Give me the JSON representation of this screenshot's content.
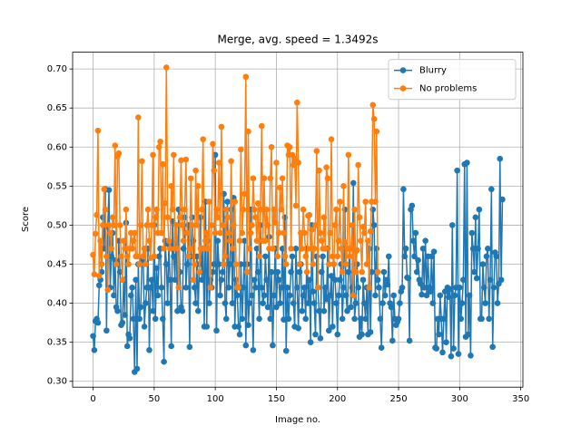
{
  "chart_data": {
    "type": "line",
    "title": "Merge, avg. speed = 1.3492s",
    "x_label": "Image no.",
    "y_label": "Score",
    "xlim": [
      -16.75,
      351.75
    ],
    "xticks": [
      0,
      50,
      100,
      150,
      200,
      250,
      300,
      350
    ],
    "ylim": [
      0.2925,
      0.7215
    ],
    "yticks": [
      {
        "value": 0.3,
        "label": "0.30"
      },
      {
        "value": 0.35,
        "label": "0.35"
      },
      {
        "value": 0.4,
        "label": "0.40"
      },
      {
        "value": 0.45,
        "label": "0.45"
      },
      {
        "value": 0.5,
        "label": "0.50"
      },
      {
        "value": 0.55,
        "label": "0.55"
      },
      {
        "value": 0.6,
        "label": "0.60"
      },
      {
        "value": 0.65,
        "label": "0.65"
      },
      {
        "value": 0.7,
        "label": "0.70"
      }
    ],
    "grid": true,
    "legend": "upper right",
    "series": [
      {
        "name": "Blurry",
        "color": "#1f77b4",
        "values": [
          0.358,
          0.34,
          0.377,
          0.38,
          0.375,
          0.423,
          0.43,
          0.44,
          0.51,
          0.47,
          0.546,
          0.365,
          0.498,
          0.545,
          0.42,
          0.46,
          0.49,
          0.41,
          0.455,
          0.395,
          0.39,
          0.48,
          0.44,
          0.372,
          0.375,
          0.43,
          0.385,
          0.503,
          0.345,
          0.36,
          0.355,
          0.41,
          0.42,
          0.38,
          0.312,
          0.43,
          0.316,
          0.45,
          0.38,
          0.395,
          0.455,
          0.46,
          0.37,
          0.4,
          0.42,
          0.47,
          0.34,
          0.42,
          0.43,
          0.39,
          0.5,
          0.38,
          0.445,
          0.41,
          0.46,
          0.47,
          0.42,
          0.38,
          0.325,
          0.48,
          0.45,
          0.4,
          0.475,
          0.43,
          0.345,
          0.505,
          0.46,
          0.43,
          0.5,
          0.39,
          0.52,
          0.44,
          0.395,
          0.39,
          0.47,
          0.51,
          0.42,
          0.45,
          0.5,
          0.344,
          0.46,
          0.51,
          0.48,
          0.42,
          0.4,
          0.46,
          0.39,
          0.45,
          0.51,
          0.43,
          0.47,
          0.37,
          0.53,
          0.37,
          0.48,
          0.4,
          0.43,
          0.42,
          0.44,
          0.45,
          0.59,
          0.365,
          0.48,
          0.45,
          0.41,
          0.43,
          0.44,
          0.54,
          0.4,
          0.38,
          0.53,
          0.42,
          0.45,
          0.52,
          0.4,
          0.535,
          0.37,
          0.43,
          0.41,
          0.37,
          0.36,
          0.45,
          0.38,
          0.42,
          0.48,
          0.346,
          0.45,
          0.372,
          0.4,
          0.52,
          0.41,
          0.34,
          0.43,
          0.42,
          0.47,
          0.44,
          0.38,
          0.5,
          0.42,
          0.4,
          0.41,
          0.46,
          0.43,
          0.395,
          0.485,
          0.38,
          0.44,
          0.346,
          0.41,
          0.47,
          0.395,
          0.44,
          0.43,
          0.4,
          0.42,
          0.47,
          0.379,
          0.51,
          0.339,
          0.42,
          0.38,
          0.41,
          0.44,
          0.46,
          0.4,
          0.37,
          0.47,
          0.42,
          0.368,
          0.44,
          0.45,
          0.39,
          0.41,
          0.42,
          0.38,
          0.47,
          0.4,
          0.43,
          0.35,
          0.5,
          0.415,
          0.4,
          0.36,
          0.46,
          0.42,
          0.39,
          0.355,
          0.44,
          0.46,
          0.39,
          0.42,
          0.405,
          0.47,
          0.365,
          0.41,
          0.435,
          0.37,
          0.45,
          0.43,
          0.4,
          0.36,
          0.41,
          0.43,
          0.45,
          0.38,
          0.42,
          0.52,
          0.41,
          0.39,
          0.44,
          0.47,
          0.395,
          0.42,
          0.554,
          0.38,
          0.4,
          0.45,
          0.42,
          0.357,
          0.38,
          0.36,
          0.43,
          0.4,
          0.38,
          0.42,
          0.36,
          0.47,
          0.363,
          0.44,
          0.52,
          0.5,
          0.41,
          0.47,
          0.43,
          0.42,
          0.38,
          0.343,
          0.4,
          0.44,
          0.41,
          0.43,
          0.424,
          0.46,
          0.4,
          0.395,
          0.352,
          0.41,
          0.38,
          0.372,
          0.376,
          0.38,
          0.4,
          0.415,
          0.42,
          0.546,
          0.46,
          0.47,
          0.433,
          0.432,
          0.352,
          0.52,
          0.525,
          0.48,
          0.46,
          0.49,
          0.44,
          0.455,
          0.43,
          0.425,
          0.411,
          0.47,
          0.42,
          0.48,
          0.41,
          0.46,
          0.42,
          0.415,
          0.46,
          0.4,
          0.466,
          0.343,
          0.342,
          0.38,
          0.36,
          0.41,
          0.38,
          0.337,
          0.38,
          0.415,
          0.35,
          0.42,
          0.408,
          0.418,
          0.332,
          0.5,
          0.342,
          0.41,
          0.42,
          0.57,
          0.335,
          0.42,
          0.38,
          0.4,
          0.43,
          0.578,
          0.357,
          0.58,
          0.36,
          0.41,
          0.333,
          0.49,
          0.47,
          0.44,
          0.51,
          0.432,
          0.47,
          0.52,
          0.38,
          0.38,
          0.45,
          0.42,
          0.4,
          0.46,
          0.47,
          0.38,
          0.43,
          0.546,
          0.344,
          0.42,
          0.465,
          0.46,
          0.4,
          0.425,
          0.585,
          0.43,
          0.533
        ]
      },
      {
        "name": "No problems",
        "color": "#ff7f0e",
        "values": [
          0.462,
          0.437,
          0.489,
          0.513,
          0.621,
          0.435,
          0.48,
          0.45,
          0.5,
          0.546,
          0.52,
          0.46,
          0.417,
          0.5,
          0.49,
          0.47,
          0.51,
          0.5,
          0.602,
          0.45,
          0.588,
          0.592,
          0.5,
          0.46,
          0.43,
          0.48,
          0.47,
          0.52,
          0.46,
          0.45,
          0.47,
          0.49,
          0.47,
          0.48,
          0.49,
          0.46,
          0.46,
          0.638,
          0.45,
          0.5,
          0.582,
          0.46,
          0.47,
          0.45,
          0.5,
          0.52,
          0.48,
          0.458,
          0.5,
          0.59,
          0.46,
          0.51,
          0.52,
          0.49,
          0.6,
          0.607,
          0.49,
          0.578,
          0.47,
          0.528,
          0.702,
          0.51,
          0.48,
          0.47,
          0.55,
          0.52,
          0.59,
          0.47,
          0.5,
          0.47,
          0.42,
          0.51,
          0.583,
          0.5,
          0.48,
          0.52,
          0.584,
          0.49,
          0.46,
          0.47,
          0.56,
          0.5,
          0.43,
          0.45,
          0.57,
          0.5,
          0.55,
          0.44,
          0.47,
          0.52,
          0.61,
          0.47,
          0.48,
          0.49,
          0.47,
          0.53,
          0.42,
          0.5,
          0.604,
          0.57,
          0.49,
          0.52,
          0.51,
          0.58,
          0.49,
          0.626,
          0.5,
          0.45,
          0.46,
          0.52,
          0.51,
          0.49,
          0.48,
          0.582,
          0.47,
          0.5,
          0.53,
          0.45,
          0.42,
          0.42,
          0.48,
          0.597,
          0.49,
          0.52,
          0.54,
          0.69,
          0.44,
          0.62,
          0.47,
          0.49,
          0.5,
          0.56,
          0.52,
          0.51,
          0.48,
          0.528,
          0.46,
          0.52,
          0.627,
          0.48,
          0.56,
          0.48,
          0.52,
          0.5,
          0.47,
          0.56,
          0.6,
          0.47,
          0.52,
          0.503,
          0.58,
          0.46,
          0.49,
          0.548,
          0.52,
          0.56,
          0.49,
          0.46,
          0.45,
          0.602,
          0.59,
          0.6,
          0.47,
          0.59,
          0.577,
          0.585,
          0.525,
          0.657,
          0.58,
          0.45,
          0.49,
          0.47,
          0.52,
          0.49,
          0.46,
          0.44,
          0.512,
          0.513,
          0.47,
          0.494,
          0.45,
          0.47,
          0.5,
          0.595,
          0.42,
          0.57,
          0.49,
          0.48,
          0.47,
          0.51,
          0.47,
          0.574,
          0.56,
          0.45,
          0.49,
          0.61,
          0.46,
          0.45,
          0.5,
          0.52,
          0.46,
          0.48,
          0.53,
          0.47,
          0.44,
          0.55,
          0.478,
          0.45,
          0.47,
          0.59,
          0.46,
          0.47,
          0.5,
          0.41,
          0.52,
          0.44,
          0.468,
          0.577,
          0.51,
          0.48,
          0.44,
          0.498,
          0.49,
          0.53,
          0.45,
          0.48,
          0.42,
          0.492,
          0.53,
          0.654,
          0.636,
          0.53,
          0.62,
          0.44
        ]
      }
    ]
  }
}
